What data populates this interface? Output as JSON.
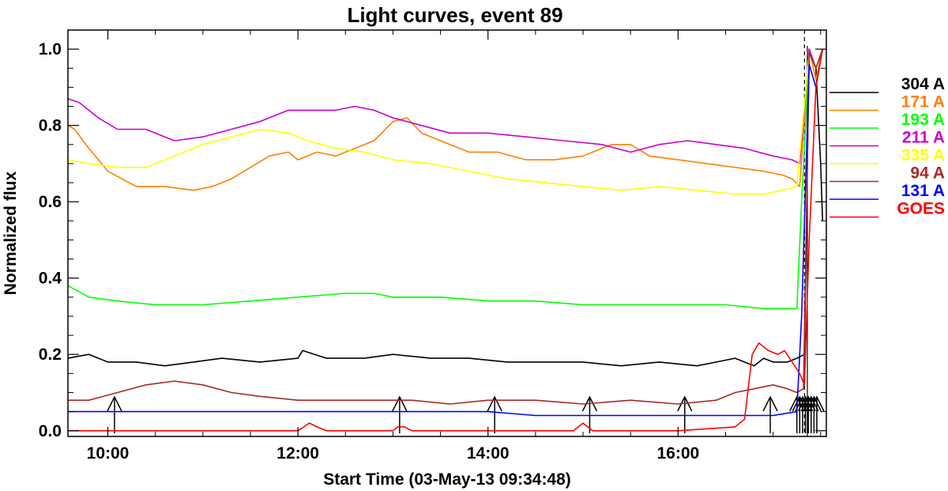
{
  "chart_data": {
    "type": "line",
    "title": "Light curves, event 89",
    "xlabel": "Start Time (03-May-13 09:34:48)",
    "ylabel": "Normalized flux",
    "x_unit": "hours",
    "xlim": [
      9.58,
      17.56
    ],
    "ylim": [
      -0.015,
      1.05
    ],
    "grid": false,
    "legend_position": "right",
    "x_ticks": [
      {
        "value": 10,
        "label": "10:00"
      },
      {
        "value": 12,
        "label": "12:00"
      },
      {
        "value": 14,
        "label": "14:00"
      },
      {
        "value": 16,
        "label": "16:00"
      }
    ],
    "y_ticks": [
      {
        "value": 0.0,
        "label": "0.0"
      },
      {
        "value": 0.2,
        "label": "0.2"
      },
      {
        "value": 0.4,
        "label": "0.4"
      },
      {
        "value": 0.6,
        "label": "0.6"
      },
      {
        "value": 0.8,
        "label": "0.8"
      },
      {
        "value": 1.0,
        "label": "1.0"
      }
    ],
    "series": [
      {
        "name": "304 A",
        "color": "#000000",
        "x": [
          9.58,
          9.8,
          10.0,
          10.3,
          10.6,
          10.9,
          11.2,
          11.6,
          12.0,
          12.05,
          12.3,
          12.7,
          13.0,
          13.4,
          13.8,
          14.2,
          14.6,
          15.0,
          15.4,
          15.8,
          16.2,
          16.6,
          16.8,
          16.9,
          17.0,
          17.15,
          17.25,
          17.33,
          17.38,
          17.45,
          17.5,
          17.52
        ],
        "y": [
          0.19,
          0.2,
          0.18,
          0.18,
          0.17,
          0.18,
          0.19,
          0.18,
          0.19,
          0.21,
          0.19,
          0.19,
          0.2,
          0.19,
          0.19,
          0.18,
          0.18,
          0.18,
          0.17,
          0.18,
          0.17,
          0.19,
          0.17,
          0.19,
          0.18,
          0.18,
          0.19,
          0.2,
          1.0,
          0.95,
          0.7,
          0.55
        ]
      },
      {
        "name": "171 A",
        "color": "#ff7f00",
        "x": [
          9.58,
          9.65,
          9.8,
          10.0,
          10.3,
          10.6,
          10.9,
          11.1,
          11.3,
          11.5,
          11.7,
          11.9,
          12.0,
          12.2,
          12.4,
          12.6,
          12.8,
          13.0,
          13.15,
          13.3,
          13.5,
          13.8,
          14.1,
          14.4,
          14.7,
          15.0,
          15.3,
          15.5,
          15.7,
          16.0,
          16.3,
          16.6,
          16.9,
          17.1,
          17.2,
          17.28,
          17.38,
          17.45,
          17.52
        ],
        "y": [
          0.8,
          0.79,
          0.74,
          0.68,
          0.64,
          0.64,
          0.63,
          0.64,
          0.66,
          0.69,
          0.72,
          0.73,
          0.71,
          0.73,
          0.72,
          0.74,
          0.76,
          0.81,
          0.82,
          0.78,
          0.76,
          0.73,
          0.73,
          0.71,
          0.71,
          0.72,
          0.75,
          0.75,
          0.72,
          0.71,
          0.7,
          0.69,
          0.68,
          0.67,
          0.66,
          0.64,
          1.0,
          0.92,
          1.0
        ]
      },
      {
        "name": "193 A",
        "color": "#00ff00",
        "x": [
          9.58,
          9.8,
          10.1,
          10.5,
          11.0,
          11.5,
          12.0,
          12.5,
          12.8,
          13.0,
          13.5,
          14.0,
          14.5,
          15.0,
          15.5,
          16.0,
          16.5,
          16.9,
          17.1,
          17.25,
          17.3,
          17.38,
          17.45,
          17.52
        ],
        "y": [
          0.38,
          0.35,
          0.34,
          0.33,
          0.33,
          0.34,
          0.35,
          0.36,
          0.36,
          0.35,
          0.35,
          0.34,
          0.34,
          0.33,
          0.33,
          0.33,
          0.33,
          0.32,
          0.32,
          0.32,
          0.6,
          0.99,
          0.95,
          1.0
        ]
      },
      {
        "name": "211 A",
        "color": "#cc00cc",
        "x": [
          9.58,
          9.7,
          9.9,
          10.1,
          10.4,
          10.7,
          11.0,
          11.3,
          11.6,
          11.9,
          12.1,
          12.4,
          12.6,
          12.8,
          13.0,
          13.3,
          13.6,
          14.0,
          14.4,
          14.8,
          15.2,
          15.5,
          15.8,
          16.1,
          16.4,
          16.7,
          17.0,
          17.2,
          17.28,
          17.38,
          17.45,
          17.52
        ],
        "y": [
          0.87,
          0.86,
          0.82,
          0.79,
          0.79,
          0.76,
          0.77,
          0.79,
          0.81,
          0.84,
          0.84,
          0.84,
          0.85,
          0.84,
          0.82,
          0.8,
          0.78,
          0.78,
          0.77,
          0.76,
          0.75,
          0.73,
          0.75,
          0.76,
          0.75,
          0.74,
          0.72,
          0.71,
          0.7,
          1.0,
          0.95,
          1.0
        ]
      },
      {
        "name": "335 A",
        "color": "#ffff00",
        "x": [
          9.58,
          9.8,
          10.1,
          10.4,
          10.7,
          11.0,
          11.3,
          11.6,
          11.9,
          12.1,
          12.4,
          12.7,
          13.0,
          13.4,
          13.8,
          14.2,
          14.6,
          15.0,
          15.4,
          15.8,
          16.2,
          16.6,
          16.9,
          17.1,
          17.25,
          17.38,
          17.45,
          17.52
        ],
        "y": [
          0.71,
          0.7,
          0.69,
          0.69,
          0.72,
          0.75,
          0.77,
          0.79,
          0.78,
          0.76,
          0.74,
          0.73,
          0.71,
          0.7,
          0.68,
          0.66,
          0.65,
          0.64,
          0.63,
          0.64,
          0.63,
          0.62,
          0.62,
          0.63,
          0.64,
          0.99,
          0.95,
          1.0
        ]
      },
      {
        "name": "94 A",
        "color": "#a52a2a",
        "x": [
          9.58,
          9.8,
          10.1,
          10.4,
          10.7,
          11.0,
          11.3,
          11.6,
          12.0,
          12.4,
          12.8,
          13.2,
          13.6,
          14.0,
          14.5,
          15.0,
          15.5,
          16.0,
          16.4,
          16.6,
          16.8,
          17.0,
          17.15,
          17.25,
          17.32,
          17.38,
          17.45,
          17.52
        ],
        "y": [
          0.08,
          0.08,
          0.1,
          0.12,
          0.13,
          0.12,
          0.1,
          0.09,
          0.08,
          0.08,
          0.08,
          0.08,
          0.07,
          0.08,
          0.08,
          0.07,
          0.08,
          0.07,
          0.08,
          0.1,
          0.11,
          0.12,
          0.11,
          0.1,
          0.11,
          0.99,
          0.95,
          1.0
        ]
      },
      {
        "name": "131 A",
        "color": "#0000ff",
        "x": [
          9.58,
          10.0,
          10.5,
          11.0,
          11.5,
          12.0,
          12.5,
          13.0,
          13.5,
          14.0,
          14.5,
          15.0,
          15.5,
          16.0,
          16.5,
          17.0,
          17.25,
          17.3,
          17.38,
          17.45,
          17.52
        ],
        "y": [
          0.05,
          0.05,
          0.05,
          0.05,
          0.05,
          0.05,
          0.05,
          0.05,
          0.05,
          0.05,
          0.04,
          0.04,
          0.04,
          0.04,
          0.04,
          0.04,
          0.05,
          0.3,
          0.96,
          0.9,
          1.0
        ]
      },
      {
        "name": "GOES",
        "color": "#ff0000",
        "x": [
          9.58,
          10.0,
          11.0,
          12.0,
          12.12,
          12.2,
          12.3,
          13.0,
          13.05,
          13.12,
          13.2,
          14.0,
          14.9,
          15.0,
          15.05,
          15.1,
          16.0,
          16.6,
          16.7,
          16.78,
          16.85,
          16.95,
          17.05,
          17.12,
          17.2,
          17.28,
          17.33,
          17.38,
          17.45,
          17.52
        ],
        "y": [
          0.0,
          0.0,
          0.0,
          0.0,
          0.02,
          0.01,
          0.0,
          0.0,
          0.01,
          0.01,
          0.0,
          0.0,
          0.0,
          0.02,
          0.01,
          0.0,
          0.0,
          0.01,
          0.03,
          0.2,
          0.23,
          0.21,
          0.2,
          0.21,
          0.18,
          0.15,
          0.12,
          0.5,
          0.9,
          1.0
        ]
      }
    ],
    "arrows_x": [
      10.07,
      13.07,
      14.07,
      15.07,
      16.07,
      16.97,
      17.25,
      17.28,
      17.31,
      17.34,
      17.37,
      17.4,
      17.43,
      17.46
    ],
    "dashed_line_x": 17.33,
    "peak_line_x": 17.36
  }
}
